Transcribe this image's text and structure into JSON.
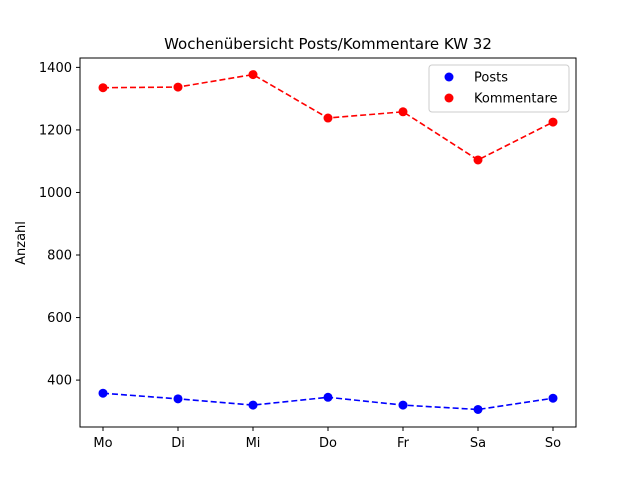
{
  "chart_data": {
    "type": "line",
    "title": "Wochenübersicht Posts/Kommentare KW 32",
    "xlabel": "",
    "ylabel": "Anzahl",
    "categories": [
      "Mo",
      "Di",
      "Mi",
      "Do",
      "Fr",
      "Sa",
      "So"
    ],
    "ylim": [
      250,
      1430
    ],
    "yticks": [
      400,
      600,
      800,
      1000,
      1200,
      1400
    ],
    "grid": false,
    "legend_position": "top-right",
    "series": [
      {
        "name": "Posts",
        "color": "#0000ff",
        "line_style": "dashed",
        "marker": "circle",
        "values": [
          358,
          340,
          320,
          345,
          320,
          306,
          342
        ]
      },
      {
        "name": "Kommentare",
        "color": "#ff0000",
        "line_style": "dashed",
        "marker": "circle",
        "values": [
          1335,
          1337,
          1377,
          1238,
          1258,
          1104,
          1225
        ]
      }
    ]
  }
}
